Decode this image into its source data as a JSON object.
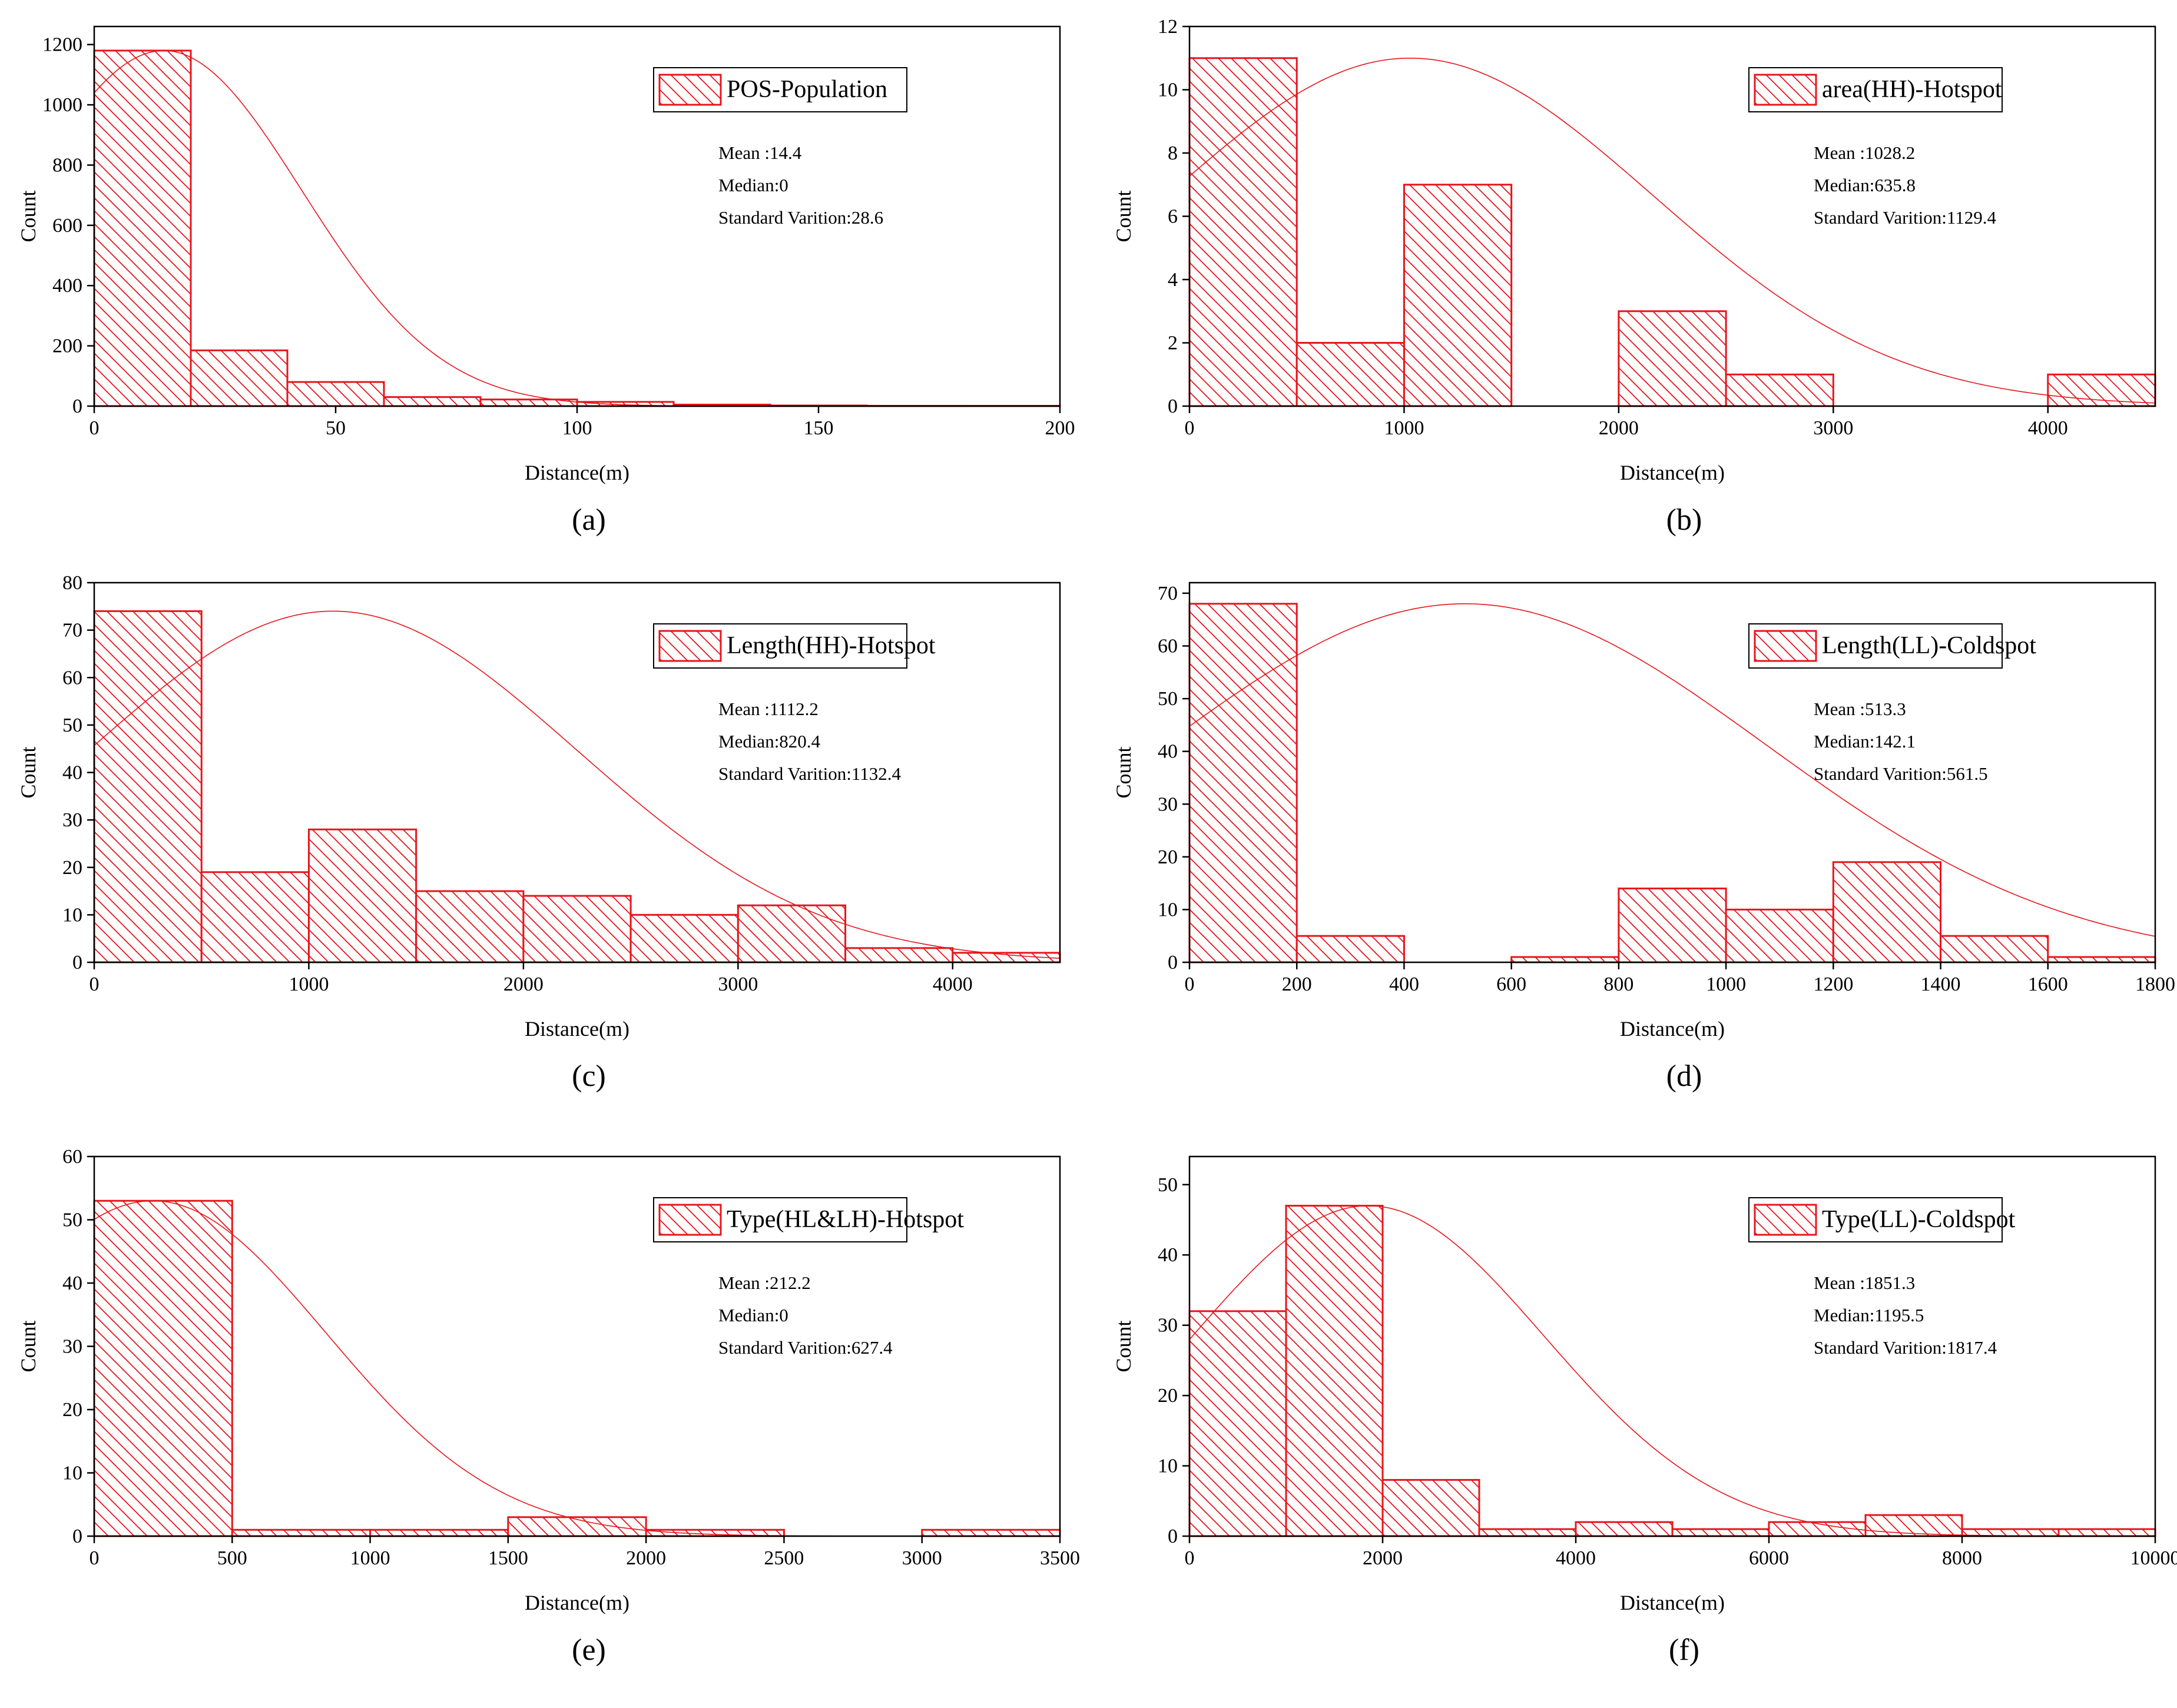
{
  "chart_data": [
    {
      "id": "a",
      "type": "bar",
      "caption": "(a)",
      "xlabel": "Distance(m)",
      "ylabel": "Count",
      "xlim": [
        0,
        200
      ],
      "ylim": [
        0,
        1260
      ],
      "xticks": [
        0,
        50,
        100,
        150,
        200
      ],
      "yticks": [
        0,
        200,
        400,
        600,
        800,
        1000,
        1200
      ],
      "bins": [
        [
          0,
          20,
          1180
        ],
        [
          20,
          40,
          185
        ],
        [
          40,
          60,
          80
        ],
        [
          60,
          80,
          30
        ],
        [
          80,
          100,
          22
        ],
        [
          100,
          120,
          14
        ],
        [
          120,
          140,
          5
        ],
        [
          140,
          160,
          2
        ],
        [
          160,
          180,
          1
        ],
        [
          180,
          200,
          1
        ]
      ],
      "legend": "POS-Population",
      "stats": [
        "Mean :14.4",
        "Median:0",
        "Standard Varition:28.6"
      ],
      "fit": {
        "mean": 14.4,
        "sd": 28.6,
        "peak": 1180
      }
    },
    {
      "id": "b",
      "type": "bar",
      "caption": "(b)",
      "xlabel": "Distance(m)",
      "ylabel": "Count",
      "xlim": [
        0,
        4500
      ],
      "ylim": [
        0,
        12
      ],
      "xticks": [
        0,
        1000,
        2000,
        3000,
        4000
      ],
      "yticks": [
        0,
        2,
        4,
        6,
        8,
        10,
        12
      ],
      "bins": [
        [
          0,
          500,
          11
        ],
        [
          500,
          1000,
          2
        ],
        [
          1000,
          1500,
          7
        ],
        [
          2000,
          2500,
          3
        ],
        [
          2500,
          3000,
          1
        ],
        [
          4000,
          4500,
          1
        ]
      ],
      "legend": "area(HH)-Hotspot",
      "stats": [
        "Mean :1028.2",
        "Median:635.8",
        "Standard Varition:1129.4"
      ],
      "fit": {
        "mean": 1028.2,
        "sd": 1129.4,
        "peak": 11
      }
    },
    {
      "id": "c",
      "type": "bar",
      "caption": "(c)",
      "xlabel": "Distance(m)",
      "ylabel": "Count",
      "xlim": [
        0,
        4500
      ],
      "ylim": [
        0,
        80
      ],
      "xticks": [
        0,
        1000,
        2000,
        3000,
        4000
      ],
      "yticks": [
        0,
        10,
        20,
        30,
        40,
        50,
        60,
        70,
        80
      ],
      "bins": [
        [
          0,
          500,
          74
        ],
        [
          500,
          1000,
          19
        ],
        [
          1000,
          1500,
          28
        ],
        [
          1500,
          2000,
          15
        ],
        [
          2000,
          2500,
          14
        ],
        [
          2500,
          3000,
          10
        ],
        [
          3000,
          3500,
          12
        ],
        [
          3500,
          4000,
          3
        ],
        [
          4000,
          4500,
          2
        ]
      ],
      "legend": "Length(HH)-Hotspot",
      "stats": [
        "Mean :1112.2",
        "Median:820.4",
        "Standard Varition:1132.4"
      ],
      "fit": {
        "mean": 1112.2,
        "sd": 1132.4,
        "peak": 74
      }
    },
    {
      "id": "d",
      "type": "bar",
      "caption": "(d)",
      "xlabel": "Distance(m)",
      "ylabel": "Count",
      "xlim": [
        0,
        1800
      ],
      "ylim": [
        0,
        72
      ],
      "xticks": [
        0,
        200,
        400,
        600,
        800,
        1000,
        1200,
        1400,
        1600,
        1800
      ],
      "yticks": [
        0,
        10,
        20,
        30,
        40,
        50,
        60,
        70
      ],
      "bins": [
        [
          0,
          200,
          68
        ],
        [
          200,
          400,
          5
        ],
        [
          600,
          800,
          1
        ],
        [
          800,
          1000,
          14
        ],
        [
          1000,
          1200,
          10
        ],
        [
          1200,
          1400,
          19
        ],
        [
          1400,
          1600,
          5
        ],
        [
          1600,
          1800,
          1
        ]
      ],
      "legend": "Length(LL)-Coldspot",
      "stats": [
        "Mean :513.3",
        "Median:142.1",
        "Standard Varition:561.5"
      ],
      "fit": {
        "mean": 513.3,
        "sd": 561.5,
        "peak": 68
      }
    },
    {
      "id": "e",
      "type": "bar",
      "caption": "(e)",
      "xlabel": "Distance(m)",
      "ylabel": "Count",
      "xlim": [
        0,
        3500
      ],
      "ylim": [
        0,
        60
      ],
      "xticks": [
        0,
        500,
        1000,
        1500,
        2000,
        2500,
        3000,
        3500
      ],
      "yticks": [
        0,
        10,
        20,
        30,
        40,
        50,
        60
      ],
      "bins": [
        [
          0,
          500,
          53
        ],
        [
          500,
          1000,
          1
        ],
        [
          1000,
          1500,
          1
        ],
        [
          1500,
          2000,
          3
        ],
        [
          2000,
          2500,
          1
        ],
        [
          3000,
          3500,
          1
        ]
      ],
      "legend": "Type(HL&LH)-Hotspot",
      "stats": [
        "Mean :212.2",
        "Median:0",
        "Standard Varition:627.4"
      ],
      "fit": {
        "mean": 212.2,
        "sd": 627.4,
        "peak": 53
      }
    },
    {
      "id": "f",
      "type": "bar",
      "caption": "(f)",
      "xlabel": "Distance(m)",
      "ylabel": "Count",
      "xlim": [
        0,
        10000
      ],
      "ylim": [
        0,
        54
      ],
      "xticks": [
        0,
        2000,
        4000,
        6000,
        8000,
        10000
      ],
      "yticks": [
        0,
        10,
        20,
        30,
        40,
        50
      ],
      "bins": [
        [
          0,
          1000,
          32
        ],
        [
          1000,
          2000,
          47
        ],
        [
          2000,
          3000,
          8
        ],
        [
          3000,
          4000,
          1
        ],
        [
          4000,
          5000,
          2
        ],
        [
          5000,
          6000,
          1
        ],
        [
          6000,
          7000,
          2
        ],
        [
          7000,
          8000,
          3
        ],
        [
          8000,
          9000,
          1
        ],
        [
          9000,
          10000,
          1
        ]
      ],
      "legend": "Type(LL)-Coldspot",
      "stats": [
        "Mean :1851.3",
        "Median:1195.5",
        "Standard Varition:1817.4"
      ],
      "fit": {
        "mean": 1851.3,
        "sd": 1817.4,
        "peak": 47
      }
    }
  ]
}
